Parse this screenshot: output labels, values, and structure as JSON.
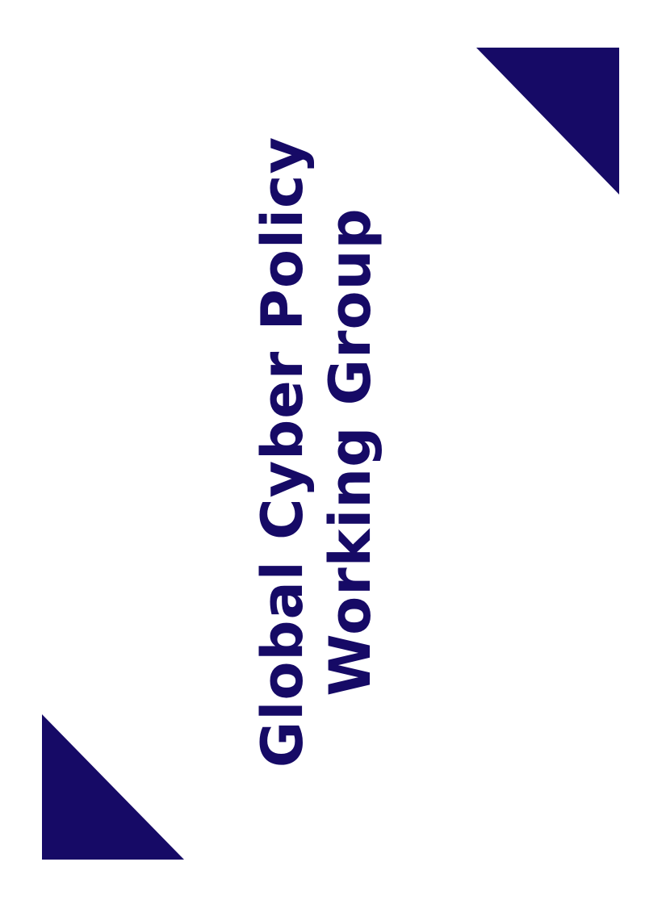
{
  "title": {
    "line1": "Global Cyber Policy",
    "line2": "Working Group"
  },
  "colors": {
    "navy": "#160a66",
    "background": "#ffffff"
  }
}
